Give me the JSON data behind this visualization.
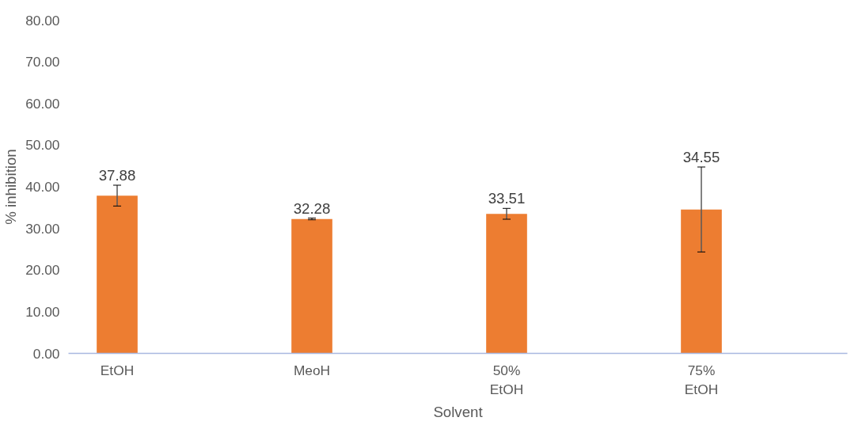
{
  "chart_data": {
    "type": "bar",
    "xlabel": "Solvent",
    "ylabel": "% inhibition",
    "categories": [
      "EtOH",
      "MeoH",
      "50%\nEtOH",
      "75%\nEtOH"
    ],
    "values": [
      37.88,
      32.28,
      33.51,
      34.55
    ],
    "errors": [
      2.5,
      0.2,
      1.3,
      10.2
    ],
    "color": "#ed7d31",
    "ylim": [
      0,
      80
    ],
    "yticks": [
      {
        "value": 0,
        "label": "0.00"
      },
      {
        "value": 10,
        "label": "10.00"
      },
      {
        "value": 20,
        "label": "20.00"
      },
      {
        "value": 30,
        "label": "30.00"
      },
      {
        "value": 40,
        "label": "40.00"
      },
      {
        "value": 50,
        "label": "50.00"
      },
      {
        "value": 60,
        "label": "60.00"
      },
      {
        "value": 70,
        "label": "70.00"
      },
      {
        "value": 80,
        "label": "80.00"
      }
    ],
    "data_labels": true,
    "grid": false
  }
}
